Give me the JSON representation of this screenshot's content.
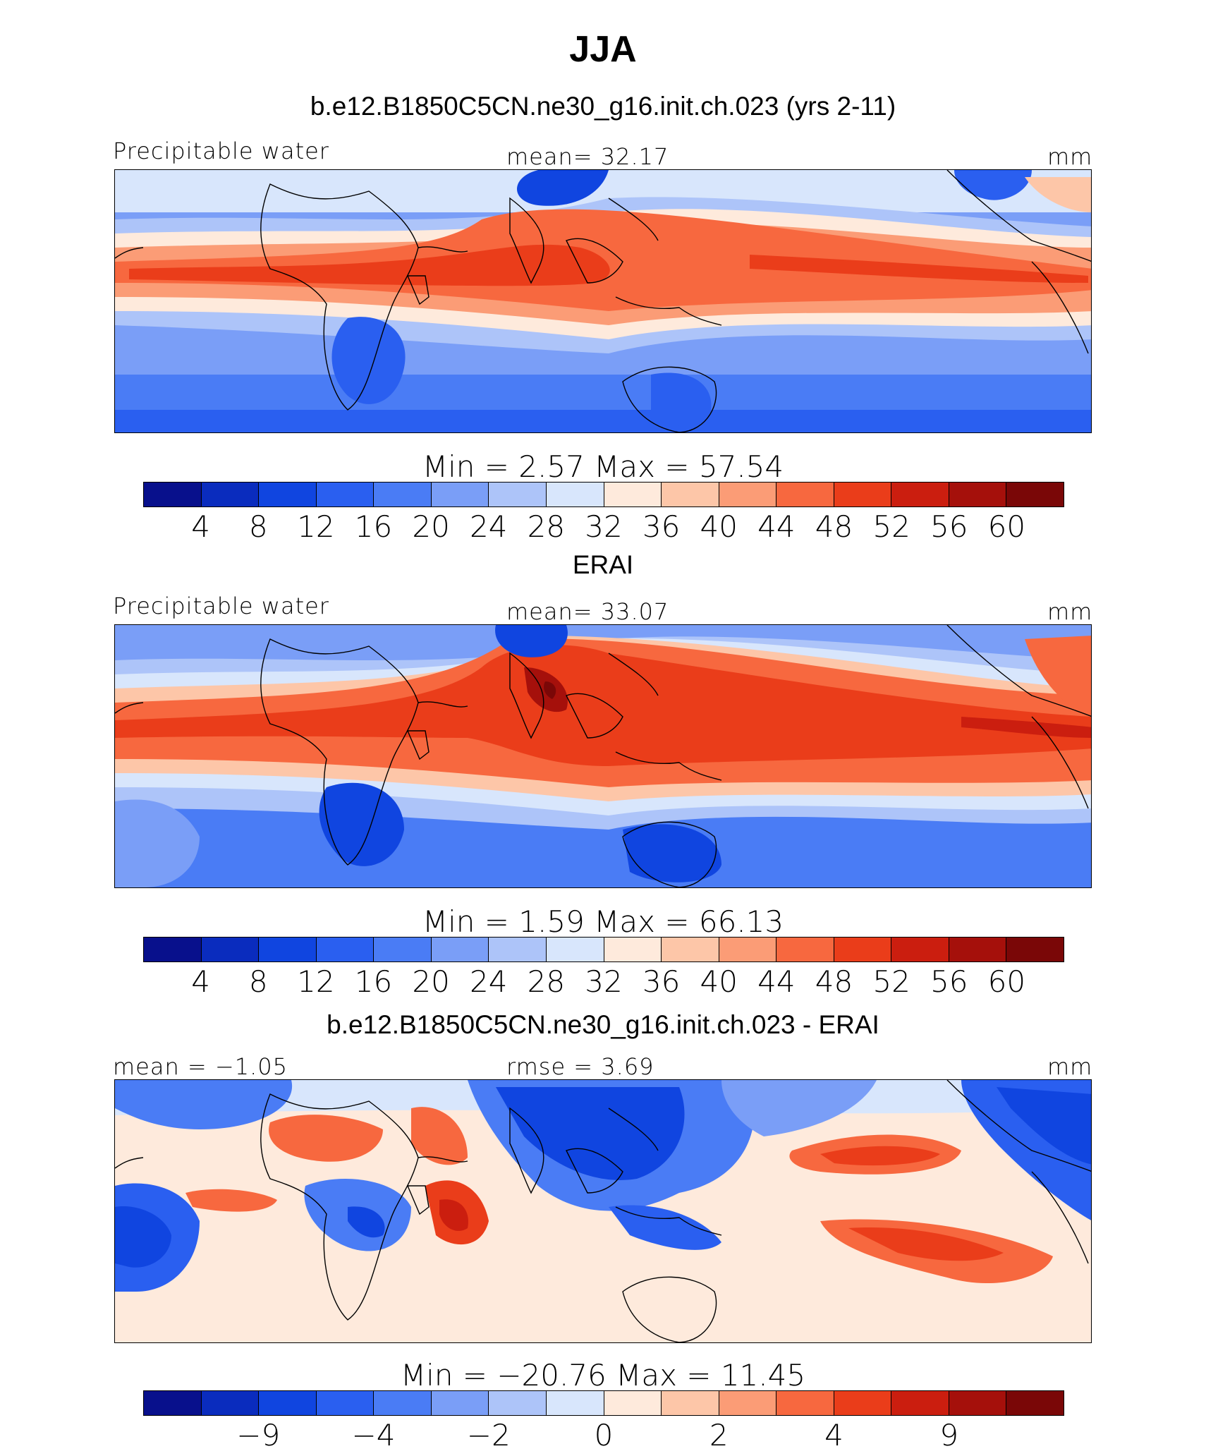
{
  "figure": {
    "title": "JJA"
  },
  "colors": [
    "#08108c",
    "#0a2cbe",
    "#1045e0",
    "#2a5ff0",
    "#4a7cf5",
    "#7a9ef7",
    "#adc4f9",
    "#d8e6fc",
    "#feeadc",
    "#fdc6a8",
    "#fb9c76",
    "#f7683f",
    "#ea3d1a",
    "#cb1e0f",
    "#a5100b",
    "#7a0707"
  ],
  "panels": [
    {
      "title": "b.e12.B1850C5CN.ne30_g16.init.ch.023 (yrs 2-11)",
      "left_label": "Precipitable water",
      "center_label": "mean=   32.17",
      "right_label": "mm",
      "stats": "Min  =     2.57  Max  =    57.54",
      "levels": [
        "4",
        "8",
        "12",
        "16",
        "20",
        "24",
        "28",
        "32",
        "36",
        "40",
        "44",
        "48",
        "52",
        "56",
        "60"
      ],
      "field": "model precipitable water"
    },
    {
      "title": "ERAI",
      "left_label": "Precipitable water",
      "center_label": "mean=   33.07",
      "right_label": "mm",
      "stats": "Min  =     1.59  Max  =    66.13",
      "levels": [
        "4",
        "8",
        "12",
        "16",
        "20",
        "24",
        "28",
        "32",
        "36",
        "40",
        "44",
        "48",
        "52",
        "56",
        "60"
      ],
      "field": "observed precipitable water"
    },
    {
      "title": "b.e12.B1850C5CN.ne30_g16.init.ch.023 - ERAI",
      "left_label": "mean =  −1.05",
      "center_label": "rmse =     3.69",
      "right_label": "mm",
      "stats": "Min  = −20.76  Max  =    11.45",
      "levels": [
        "−9",
        "",
        "−4",
        "",
        "−2",
        "",
        "0",
        "",
        "2",
        "",
        "4",
        "",
        "9"
      ],
      "field": "difference"
    }
  ]
}
